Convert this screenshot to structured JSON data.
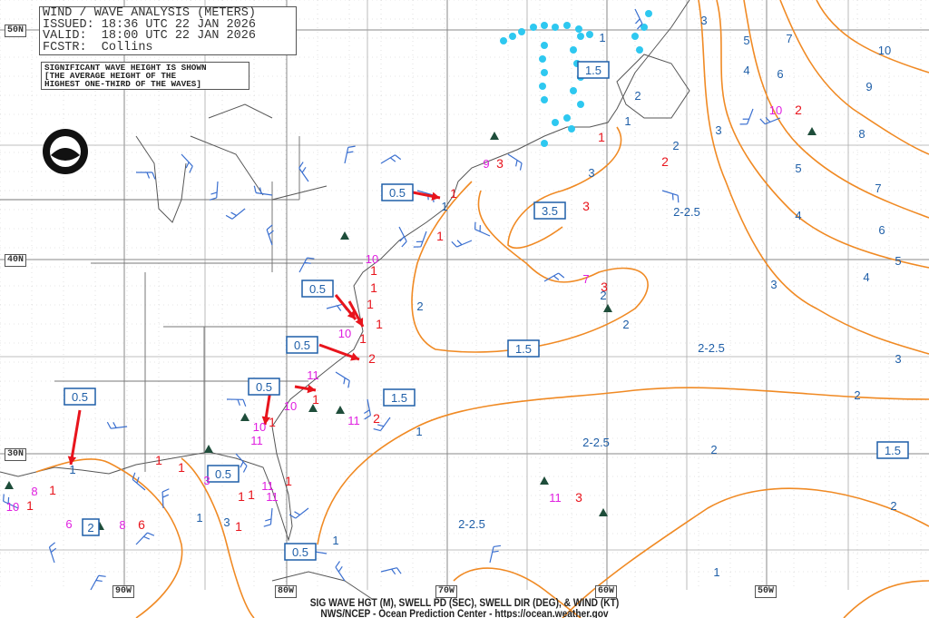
{
  "header": {
    "title": "WIND / WAVE ANALYSIS (METERS)",
    "issued": "ISSUED: 18:36 UTC 22 JAN 2026",
    "valid": "VALID:  18:00 UTC 22 JAN 2026",
    "forecaster": "FCSTR:  Collins"
  },
  "note": {
    "line1": "SIGNIFICANT WAVE HEIGHT IS SHOWN",
    "line2": "[THE AVERAGE HEIGHT OF THE",
    "line3": "HIGHEST ONE-THIRD OF THE WAVES]"
  },
  "logo": {
    "text": "NOAA",
    "icon": "noaa-logo-icon"
  },
  "latitude_labels": [
    "50N",
    "40N",
    "30N"
  ],
  "longitude_labels": [
    "90W",
    "80W",
    "70W",
    "60W",
    "50W"
  ],
  "footer": {
    "line1": "SIG WAVE HGT (M), SWELL PD (SEC), SWELL DIR (DEG), & WIND (KT)",
    "line2": "NWS/NCEP - Ocean Prediction Center - https://ocean.weather.gov"
  },
  "boxed_wave_heights": [
    "1.5",
    "0.5",
    "3.5",
    "0.5",
    "0.5",
    "1.5",
    "0.5",
    "1.5",
    "0.5",
    "0.5",
    "2",
    "0.5",
    "1.5"
  ],
  "contour_labels": [
    "1",
    "2",
    "3",
    "5",
    "7",
    "10",
    "4",
    "6",
    "9",
    "8",
    "5",
    "7",
    "4",
    "6",
    "5",
    "4",
    "3",
    "3",
    "2-2.5",
    "3",
    "2",
    "2",
    "2-2.5",
    "3",
    "2",
    "2",
    "2-2.5",
    "2",
    "2",
    "2-2.5",
    "1",
    "1",
    "1",
    "1",
    "1",
    "3",
    "1",
    "2",
    "1"
  ],
  "swell_periods": [
    "3",
    "3",
    "3",
    "1",
    "2",
    "1",
    "1",
    "1",
    "1",
    "1",
    "1",
    "1",
    "2",
    "1",
    "1",
    "1",
    "1",
    "1",
    "1",
    "1",
    "2",
    "3",
    "6",
    "1",
    "1",
    "1",
    "2"
  ],
  "swell_directions": [
    "9",
    "7",
    "10",
    "10",
    "11",
    "10",
    "10",
    "10",
    "11",
    "11",
    "11",
    "11",
    "8",
    "3",
    "6",
    "8",
    "11",
    "10"
  ],
  "colors": {
    "contour": "#f08a24",
    "label_blue": "#1f5fa8",
    "swell_period": "#e8141c",
    "swell_direction": "#e020e0",
    "arrow": "#e8141c",
    "wind_barb": "#3a6fd0",
    "coast": "#555555",
    "ice": "#2ec8f0",
    "grid": "#999999"
  }
}
